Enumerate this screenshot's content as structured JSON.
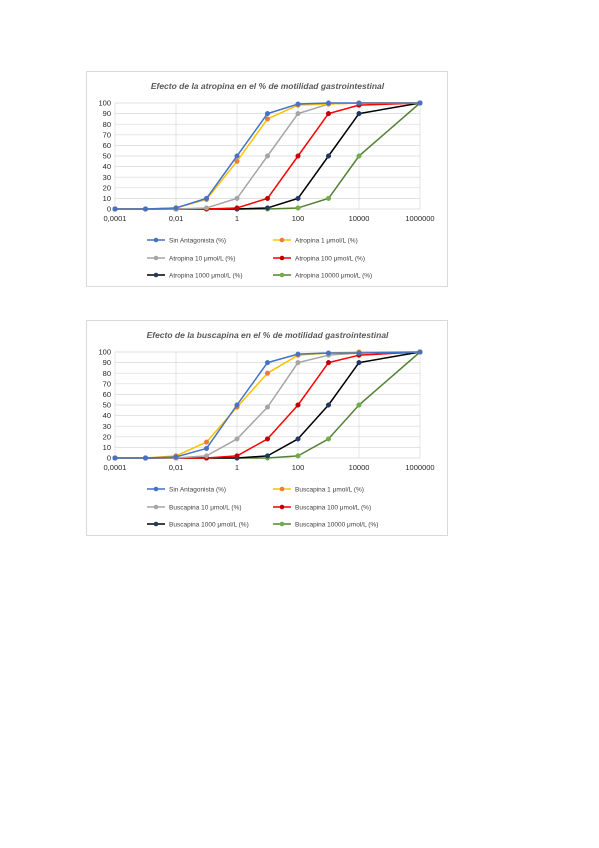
{
  "chart_data": [
    {
      "type": "line",
      "title": "Efecto de la atropina en el % de motilidad gastrointestinal",
      "xscale": "log",
      "x": [
        0.0001,
        0.001,
        0.01,
        0.1,
        1,
        10,
        100,
        1000,
        10000,
        1000000
      ],
      "xticks": [
        0.0001,
        0.01,
        1,
        100,
        10000,
        1000000
      ],
      "xtick_labels": [
        "0,0001",
        "0,01",
        "1",
        "100",
        "10000",
        "1000000"
      ],
      "ylim": [
        0,
        100
      ],
      "yticks": [
        0,
        10,
        20,
        30,
        40,
        50,
        60,
        70,
        80,
        90,
        100
      ],
      "ytick_labels": [
        "0",
        "10",
        "20",
        "30",
        "40",
        "50",
        "60",
        "70",
        "80",
        "90",
        "100"
      ],
      "grid": true,
      "legend_position": "bottom",
      "series": [
        {
          "name": "Sin Antagonista (%)",
          "color": "#4472c4",
          "values": [
            0,
            0,
            1,
            10,
            50,
            90,
            99,
            100,
            100,
            100
          ]
        },
        {
          "name": "Atropina 1 μmol/L (%)",
          "color": "#ffc000",
          "values": [
            0,
            0,
            1,
            9,
            45,
            85,
            98,
            99,
            100,
            100
          ]
        },
        {
          "name": "Atropina 10 μmol/L (%)",
          "color": "#a5a5a5",
          "values": [
            0,
            0,
            0,
            1,
            10,
            50,
            90,
            99,
            100,
            100
          ]
        },
        {
          "name": "Atropina 100 μmol/L (%)",
          "color": "#ff0000",
          "values": [
            0,
            0,
            0,
            0,
            1,
            10,
            50,
            90,
            98,
            100
          ]
        },
        {
          "name": "Atropina 1000 μmol/L (%)",
          "color": "#000000",
          "values": [
            0,
            0,
            0,
            0,
            0,
            1,
            10,
            50,
            90,
            100
          ]
        },
        {
          "name": "Atropina 10000 μmol/L (%)",
          "color": "#548235",
          "values": [
            0,
            0,
            0,
            0,
            0,
            0,
            1,
            10,
            50,
            100
          ]
        }
      ],
      "marker_colors": [
        "#4472c4",
        "#ed7d31",
        "#a5a5a5",
        "#c00000",
        "#203864",
        "#70ad47"
      ]
    },
    {
      "type": "line",
      "title": "Efecto de la buscapina en el % de motilidad gastrointestinal",
      "xscale": "log",
      "x": [
        0.0001,
        0.001,
        0.01,
        0.1,
        1,
        10,
        100,
        1000,
        10000,
        1000000
      ],
      "xticks": [
        0.0001,
        0.01,
        1,
        100,
        10000,
        1000000
      ],
      "xtick_labels": [
        "0,0001",
        "0,01",
        "1",
        "100",
        "10000",
        "1000000"
      ],
      "ylim": [
        0,
        100
      ],
      "yticks": [
        0,
        10,
        20,
        30,
        40,
        50,
        60,
        70,
        80,
        90,
        100
      ],
      "ytick_labels": [
        "0",
        "10",
        "20",
        "30",
        "40",
        "50",
        "60",
        "70",
        "80",
        "90",
        "100"
      ],
      "grid": true,
      "legend_position": "bottom",
      "series": [
        {
          "name": "Sin Antagonista (%)",
          "color": "#4472c4",
          "values": [
            0,
            0,
            1,
            9,
            50,
            90,
            98,
            99,
            99,
            100
          ]
        },
        {
          "name": "Buscapina 1 μmol/L (%)",
          "color": "#ffc000",
          "values": [
            0,
            0,
            2,
            15,
            48,
            80,
            97,
            99,
            100,
            100
          ]
        },
        {
          "name": "Buscapina 10 μmol/L (%)",
          "color": "#a5a5a5",
          "values": [
            0,
            0,
            0,
            2,
            18,
            48,
            90,
            97,
            99,
            100
          ]
        },
        {
          "name": "Buscapina 100 μmol/L (%)",
          "color": "#ff0000",
          "values": [
            0,
            0,
            0,
            0,
            2,
            18,
            50,
            90,
            97,
            100
          ]
        },
        {
          "name": "Buscapina 1000 μmol/L (%)",
          "color": "#000000",
          "values": [
            0,
            0,
            0,
            0,
            0,
            2,
            18,
            50,
            90,
            100
          ]
        },
        {
          "name": "Buscapina 10000 μmol/L (%)",
          "color": "#548235",
          "values": [
            0,
            0,
            0,
            0,
            0,
            0,
            2,
            18,
            50,
            100
          ]
        }
      ],
      "marker_colors": [
        "#4472c4",
        "#ed7d31",
        "#a5a5a5",
        "#c00000",
        "#203864",
        "#70ad47"
      ]
    }
  ]
}
